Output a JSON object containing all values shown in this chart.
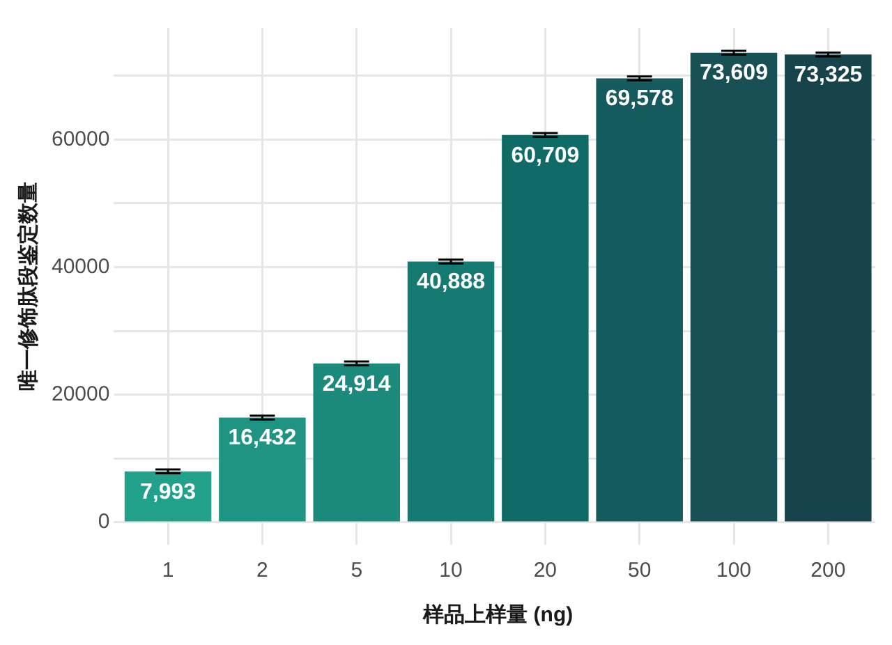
{
  "chart_data": {
    "type": "bar",
    "xlabel": "样品上样量 (ng)",
    "ylabel": "唯一修饰肽段鉴定数量",
    "categories": [
      "1",
      "2",
      "5",
      "10",
      "20",
      "50",
      "100",
      "200"
    ],
    "values": [
      7993,
      16432,
      24914,
      40888,
      60709,
      69578,
      73609,
      73325
    ],
    "errors": [
      300,
      300,
      300,
      300,
      300,
      300,
      300,
      300
    ],
    "colors": [
      "#21a08a",
      "#1f9483",
      "#1b8a7d",
      "#147a72",
      "#106b68",
      "#155b5e",
      "#185055",
      "#17434b"
    ],
    "value_labels": [
      "7,993",
      "16,432",
      "24,914",
      "40,888",
      "60,709",
      "69,578",
      "73,609",
      "73,325"
    ],
    "ylim": [
      -3500,
      77500
    ],
    "yticks": [
      0,
      {
        "value": 10000,
        "label": null
      },
      20000,
      {
        "value": 30000,
        "label": null
      },
      40000,
      {
        "value": 50000,
        "label": null
      },
      60000,
      {
        "value": 70000,
        "label": null
      }
    ],
    "grid": true,
    "legend": false
  }
}
